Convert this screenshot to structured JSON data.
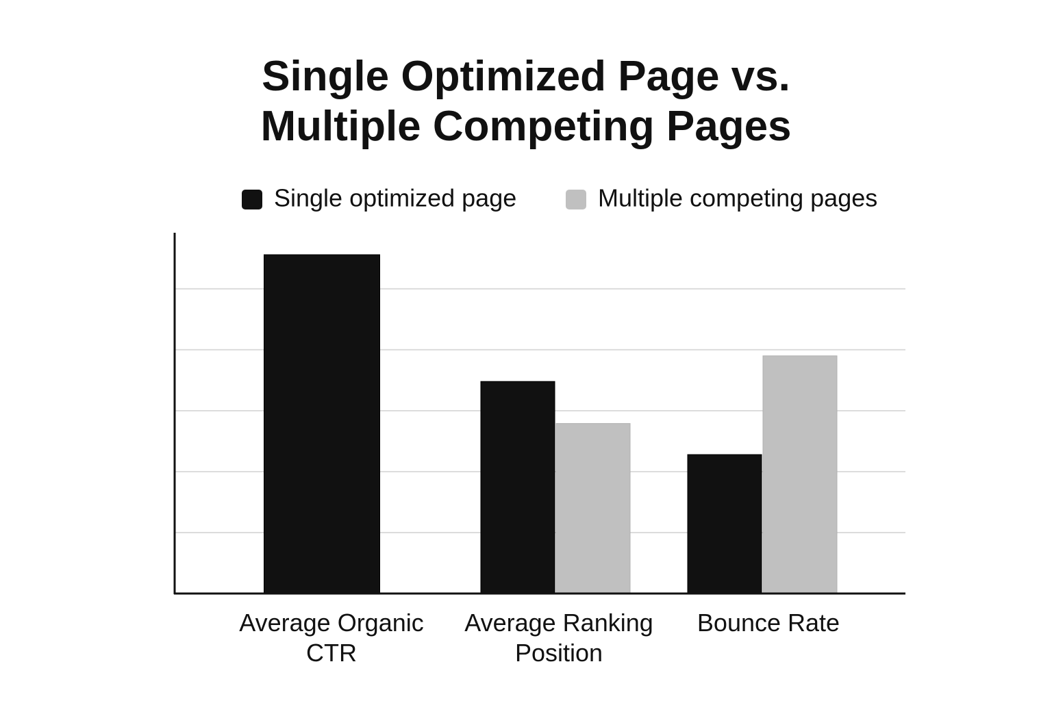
{
  "chart_data": {
    "type": "bar",
    "title": [
      "Single Optimized Page vs.",
      "Multiple Competing Pages"
    ],
    "categories": [
      "Average Organic CTR",
      "Average Ranking Position",
      "Bounce Rate"
    ],
    "series": [
      {
        "name": "Single optimized page",
        "color": "#111111",
        "values": [
          5.56,
          3.48,
          2.28
        ]
      },
      {
        "name": "Multiple competing pages",
        "color": "#c0c0c0",
        "values": [
          null,
          2.79,
          3.9
        ]
      }
    ],
    "ylim": [
      0,
      5.92
    ],
    "yticks": [
      1,
      2,
      3,
      4,
      5
    ],
    "grid": true,
    "legend": "top"
  }
}
